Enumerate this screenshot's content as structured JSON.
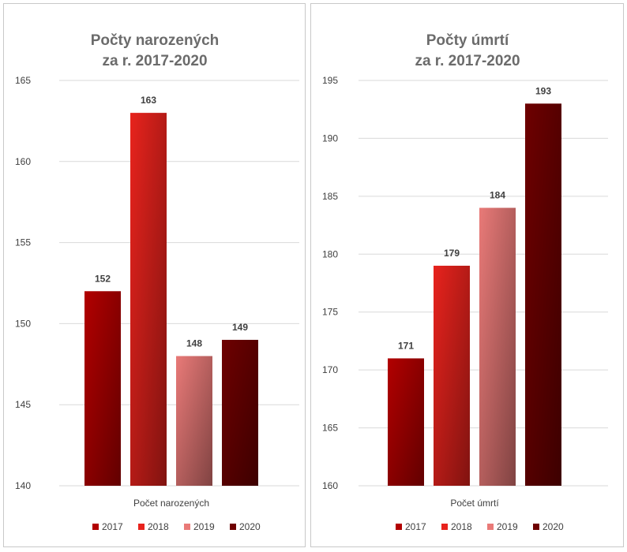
{
  "chart_data": [
    {
      "type": "bar",
      "title_lines": [
        "Počty narozených",
        "za r. 2017-2020"
      ],
      "category_label": "Počet narozených",
      "series": [
        {
          "name": "2017",
          "value": 152,
          "color": "#b20000"
        },
        {
          "name": "2018",
          "value": 163,
          "color": "#e8231d"
        },
        {
          "name": "2019",
          "value": 148,
          "color": "#e97a78"
        },
        {
          "name": "2020",
          "value": 149,
          "color": "#6e0000"
        }
      ],
      "ylim": [
        140,
        165
      ],
      "yticks": [
        140,
        145,
        150,
        155,
        160,
        165
      ],
      "grid": true,
      "legend": "bottom"
    },
    {
      "type": "bar",
      "title_lines": [
        "Počty úmrtí",
        "za r. 2017-2020"
      ],
      "category_label": "Počet úmrtí",
      "series": [
        {
          "name": "2017",
          "value": 171,
          "color": "#b20000"
        },
        {
          "name": "2018",
          "value": 179,
          "color": "#e8231d"
        },
        {
          "name": "2019",
          "value": 184,
          "color": "#e97a78"
        },
        {
          "name": "2020",
          "value": 193,
          "color": "#6e0000"
        }
      ],
      "ylim": [
        160,
        195
      ],
      "yticks": [
        160,
        165,
        170,
        175,
        180,
        185,
        190,
        195
      ],
      "grid": true,
      "legend": "bottom"
    }
  ]
}
